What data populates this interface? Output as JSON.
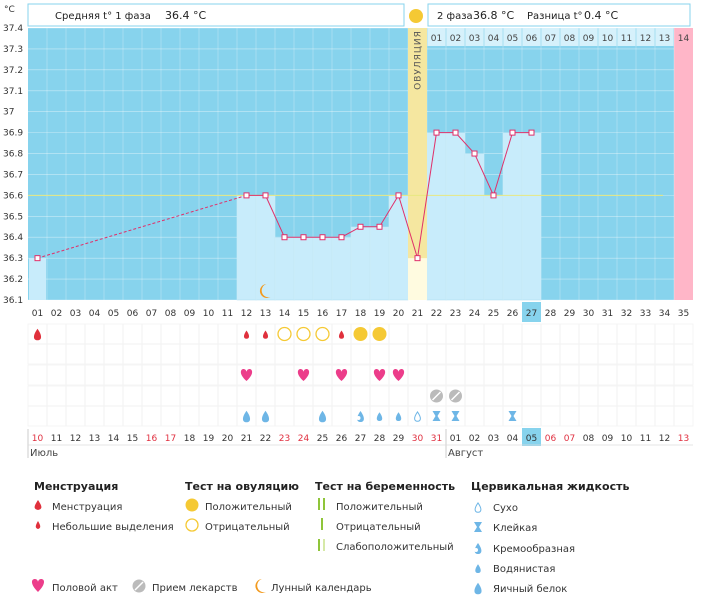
{
  "header": {
    "unit": "°C",
    "phase1_label": "Средняя t° 1 фаза",
    "phase1_value": "36.4 °C",
    "phase2_label": "2 фаза",
    "phase2_value": "36.8 °C",
    "diff_label": "Разница t°",
    "diff_value": "0.4 °C"
  },
  "ovulation_label": "ОВУЛЯЦИЯ",
  "colors": {
    "background_blue": "#87d3ed",
    "bar_fill": "#c8ecfb",
    "line": "#e0306a",
    "marker_fill": "#ffffff",
    "ovulation_band": "#f5e7a0",
    "coverline": "#e8e880",
    "pink_marker": "#ffb6c8",
    "highlight_day": "#87d3ed",
    "red_text": "#e03040",
    "drop_red": "#e0303c",
    "yellow": "#f5c934",
    "heart": "#ec3d8a",
    "med": "#bbbbbb",
    "moon": "#f29a1e",
    "mucus": "#6eb6e6"
  },
  "chart_data": {
    "type": "line",
    "title": "",
    "ylabel": "°C",
    "ylim": [
      36.1,
      37.4
    ],
    "yticks": [
      "36.1",
      "36.2",
      "36.3",
      "36.4",
      "36.5",
      "36.6",
      "36.7",
      "36.8",
      "36.9",
      "37",
      "37.1",
      "37.2",
      "37.3",
      "37.4"
    ],
    "coverline": 36.6,
    "cycle_days": [
      "01",
      "02",
      "03",
      "04",
      "05",
      "06",
      "07",
      "08",
      "09",
      "10",
      "11",
      "12",
      "13",
      "14",
      "15",
      "16",
      "17",
      "18",
      "19",
      "20",
      "21",
      "22",
      "23",
      "24",
      "25",
      "26",
      "27",
      "28",
      "29",
      "30",
      "31",
      "32",
      "33",
      "34",
      "35"
    ],
    "highlight_cycle_day": "27",
    "calendar_dates": [
      "10",
      "11",
      "12",
      "13",
      "14",
      "15",
      "16",
      "17",
      "18",
      "19",
      "20",
      "21",
      "22",
      "23",
      "24",
      "25",
      "26",
      "27",
      "28",
      "29",
      "30",
      "31",
      "01",
      "02",
      "03",
      "04",
      "05",
      "06",
      "07",
      "08",
      "09",
      "10",
      "11",
      "12",
      "13"
    ],
    "weekend_dates_idx": [
      0,
      6,
      7,
      13,
      14,
      20,
      21,
      27,
      28,
      34
    ],
    "highlight_date_idx": 26,
    "months": [
      {
        "name": "Июль",
        "start_idx": 0
      },
      {
        "name": "Август",
        "start_idx": 22
      }
    ],
    "ovulation_day": "21",
    "phase2_day_labels": [
      "01",
      "02",
      "03",
      "04",
      "05",
      "06",
      "07",
      "08",
      "09",
      "10",
      "11",
      "12",
      "13",
      "14"
    ],
    "pink_day_label": "14",
    "temperatures": [
      {
        "day": "01",
        "temp": 36.3
      },
      {
        "day": "12",
        "temp": 36.6
      },
      {
        "day": "13",
        "temp": 36.6
      },
      {
        "day": "14",
        "temp": 36.4
      },
      {
        "day": "15",
        "temp": 36.4
      },
      {
        "day": "16",
        "temp": 36.4
      },
      {
        "day": "17",
        "temp": 36.4
      },
      {
        "day": "18",
        "temp": 36.45
      },
      {
        "day": "19",
        "temp": 36.45
      },
      {
        "day": "20",
        "temp": 36.6
      },
      {
        "day": "21",
        "temp": 36.3
      },
      {
        "day": "22",
        "temp": 36.9
      },
      {
        "day": "23",
        "temp": 36.9
      },
      {
        "day": "24",
        "temp": 36.8
      },
      {
        "day": "25",
        "temp": 36.6
      },
      {
        "day": "26",
        "temp": 36.9
      },
      {
        "day": "27",
        "temp": 36.9
      }
    ],
    "dashed_segment": [
      "01",
      "12"
    ],
    "symbols": {
      "menstruation": {
        "01": "heavy",
        "12": "light",
        "13": "light",
        "17": "light"
      },
      "ovulation_test": {
        "14": "negative",
        "15": "negative",
        "16": "negative",
        "18": "positive",
        "19": "positive"
      },
      "sex": [
        "12",
        "15",
        "17",
        "19",
        "20"
      ],
      "medication": [
        "22",
        "23"
      ],
      "mucus": {
        "12": "egg_white",
        "13": "egg_white",
        "16": "egg_white",
        "18": "creamy",
        "19": "watery",
        "20": "watery",
        "21": "dry",
        "22": "sticky",
        "23": "sticky",
        "26": "sticky"
      },
      "moon": "13"
    }
  },
  "legend": {
    "menstruation": {
      "title": "Менструация",
      "items": [
        "Менструация",
        "Небольшие выделения"
      ]
    },
    "ovulation_test": {
      "title": "Тест на овуляцию",
      "items": [
        "Положительный",
        "Отрицательный"
      ]
    },
    "pregnancy_test": {
      "title": "Тест на беременность",
      "items": [
        "Положительный",
        "Отрицательный",
        "Слабоположительный"
      ]
    },
    "mucus": {
      "title": "Цервикальная жидкость",
      "items": [
        "Сухо",
        "Клейкая",
        "Кремообразная",
        "Водянистая",
        "Яичный белок"
      ]
    },
    "bottom": [
      "Половой акт",
      "Прием лекарств",
      "Лунный календарь"
    ]
  }
}
